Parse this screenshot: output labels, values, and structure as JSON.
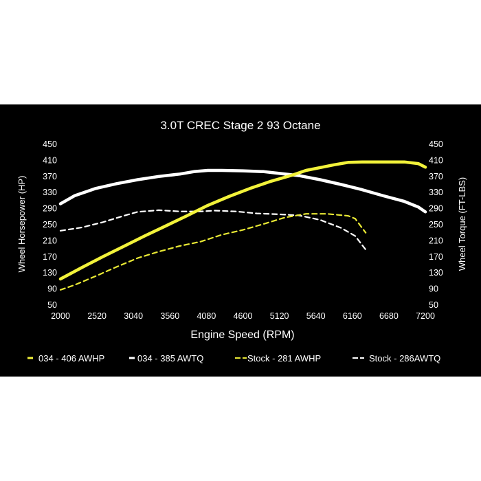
{
  "chart_data": {
    "type": "line",
    "title": "3.0T CREC Stage 2 93 Octane",
    "xlabel": "Engine Speed (RPM)",
    "ylabel": "Wheel Horsepower (HP)",
    "ylabel_right": "Wheel Torque (FT-LBS)",
    "xlim": [
      2000,
      7200
    ],
    "ylim": [
      50,
      450
    ],
    "ylim_right": [
      50,
      450
    ],
    "x_ticks": [
      "2000",
      "2520",
      "3040",
      "3560",
      "4080",
      "4600",
      "5120",
      "5640",
      "6160",
      "6680",
      "7200"
    ],
    "y_ticks": [
      "450",
      "410",
      "370",
      "330",
      "290",
      "250",
      "210",
      "170",
      "130",
      "90",
      "50"
    ],
    "y_ticks_right": [
      "450",
      "410",
      "370",
      "330",
      "290",
      "250",
      "210",
      "170",
      "130",
      "90",
      "50"
    ],
    "grid": false,
    "legend_position": "bottom",
    "series": [
      {
        "name": "034 - 406 AWHP",
        "color": "#f2f23a",
        "style": "solid",
        "x": [
          2000,
          2300,
          2600,
          2900,
          3200,
          3500,
          3800,
          4100,
          4400,
          4700,
          5000,
          5300,
          5500,
          5700,
          5900,
          6100,
          6300,
          6600,
          6900,
          7100,
          7200
        ],
        "y": [
          115,
          143,
          170,
          196,
          222,
          247,
          272,
          298,
          320,
          340,
          358,
          373,
          385,
          392,
          399,
          405,
          406,
          406,
          406,
          402,
          393
        ]
      },
      {
        "name": "034 - 385 AWTQ",
        "color": "#ffffff",
        "style": "solid",
        "x": [
          2000,
          2200,
          2500,
          2800,
          3100,
          3400,
          3700,
          3900,
          4100,
          4300,
          4600,
          4900,
          5100,
          5400,
          5700,
          6000,
          6300,
          6600,
          6900,
          7100,
          7200
        ],
        "y": [
          302,
          322,
          340,
          352,
          362,
          370,
          376,
          382,
          385,
          385,
          384,
          382,
          378,
          372,
          362,
          350,
          337,
          322,
          308,
          294,
          282
        ]
      },
      {
        "name": "Stock - 281 AWHP",
        "color": "#e8e834",
        "style": "dashed",
        "x": [
          2000,
          2200,
          2500,
          2800,
          3100,
          3400,
          3700,
          4000,
          4300,
          4600,
          4900,
          5200,
          5500,
          5800,
          6100,
          6200,
          6350
        ],
        "y": [
          88,
          100,
          122,
          145,
          167,
          183,
          197,
          208,
          225,
          237,
          252,
          268,
          277,
          277,
          272,
          265,
          230
        ]
      },
      {
        "name": "Stock - 286AWTQ",
        "color": "#ffffff",
        "style": "dashed",
        "x": [
          2000,
          2300,
          2600,
          2900,
          3100,
          3400,
          3700,
          4000,
          4200,
          4500,
          4800,
          5100,
          5400,
          5700,
          6000,
          6200,
          6350
        ],
        "y": [
          235,
          243,
          256,
          272,
          282,
          286,
          283,
          283,
          285,
          283,
          278,
          276,
          273,
          262,
          242,
          222,
          188
        ]
      }
    ]
  }
}
